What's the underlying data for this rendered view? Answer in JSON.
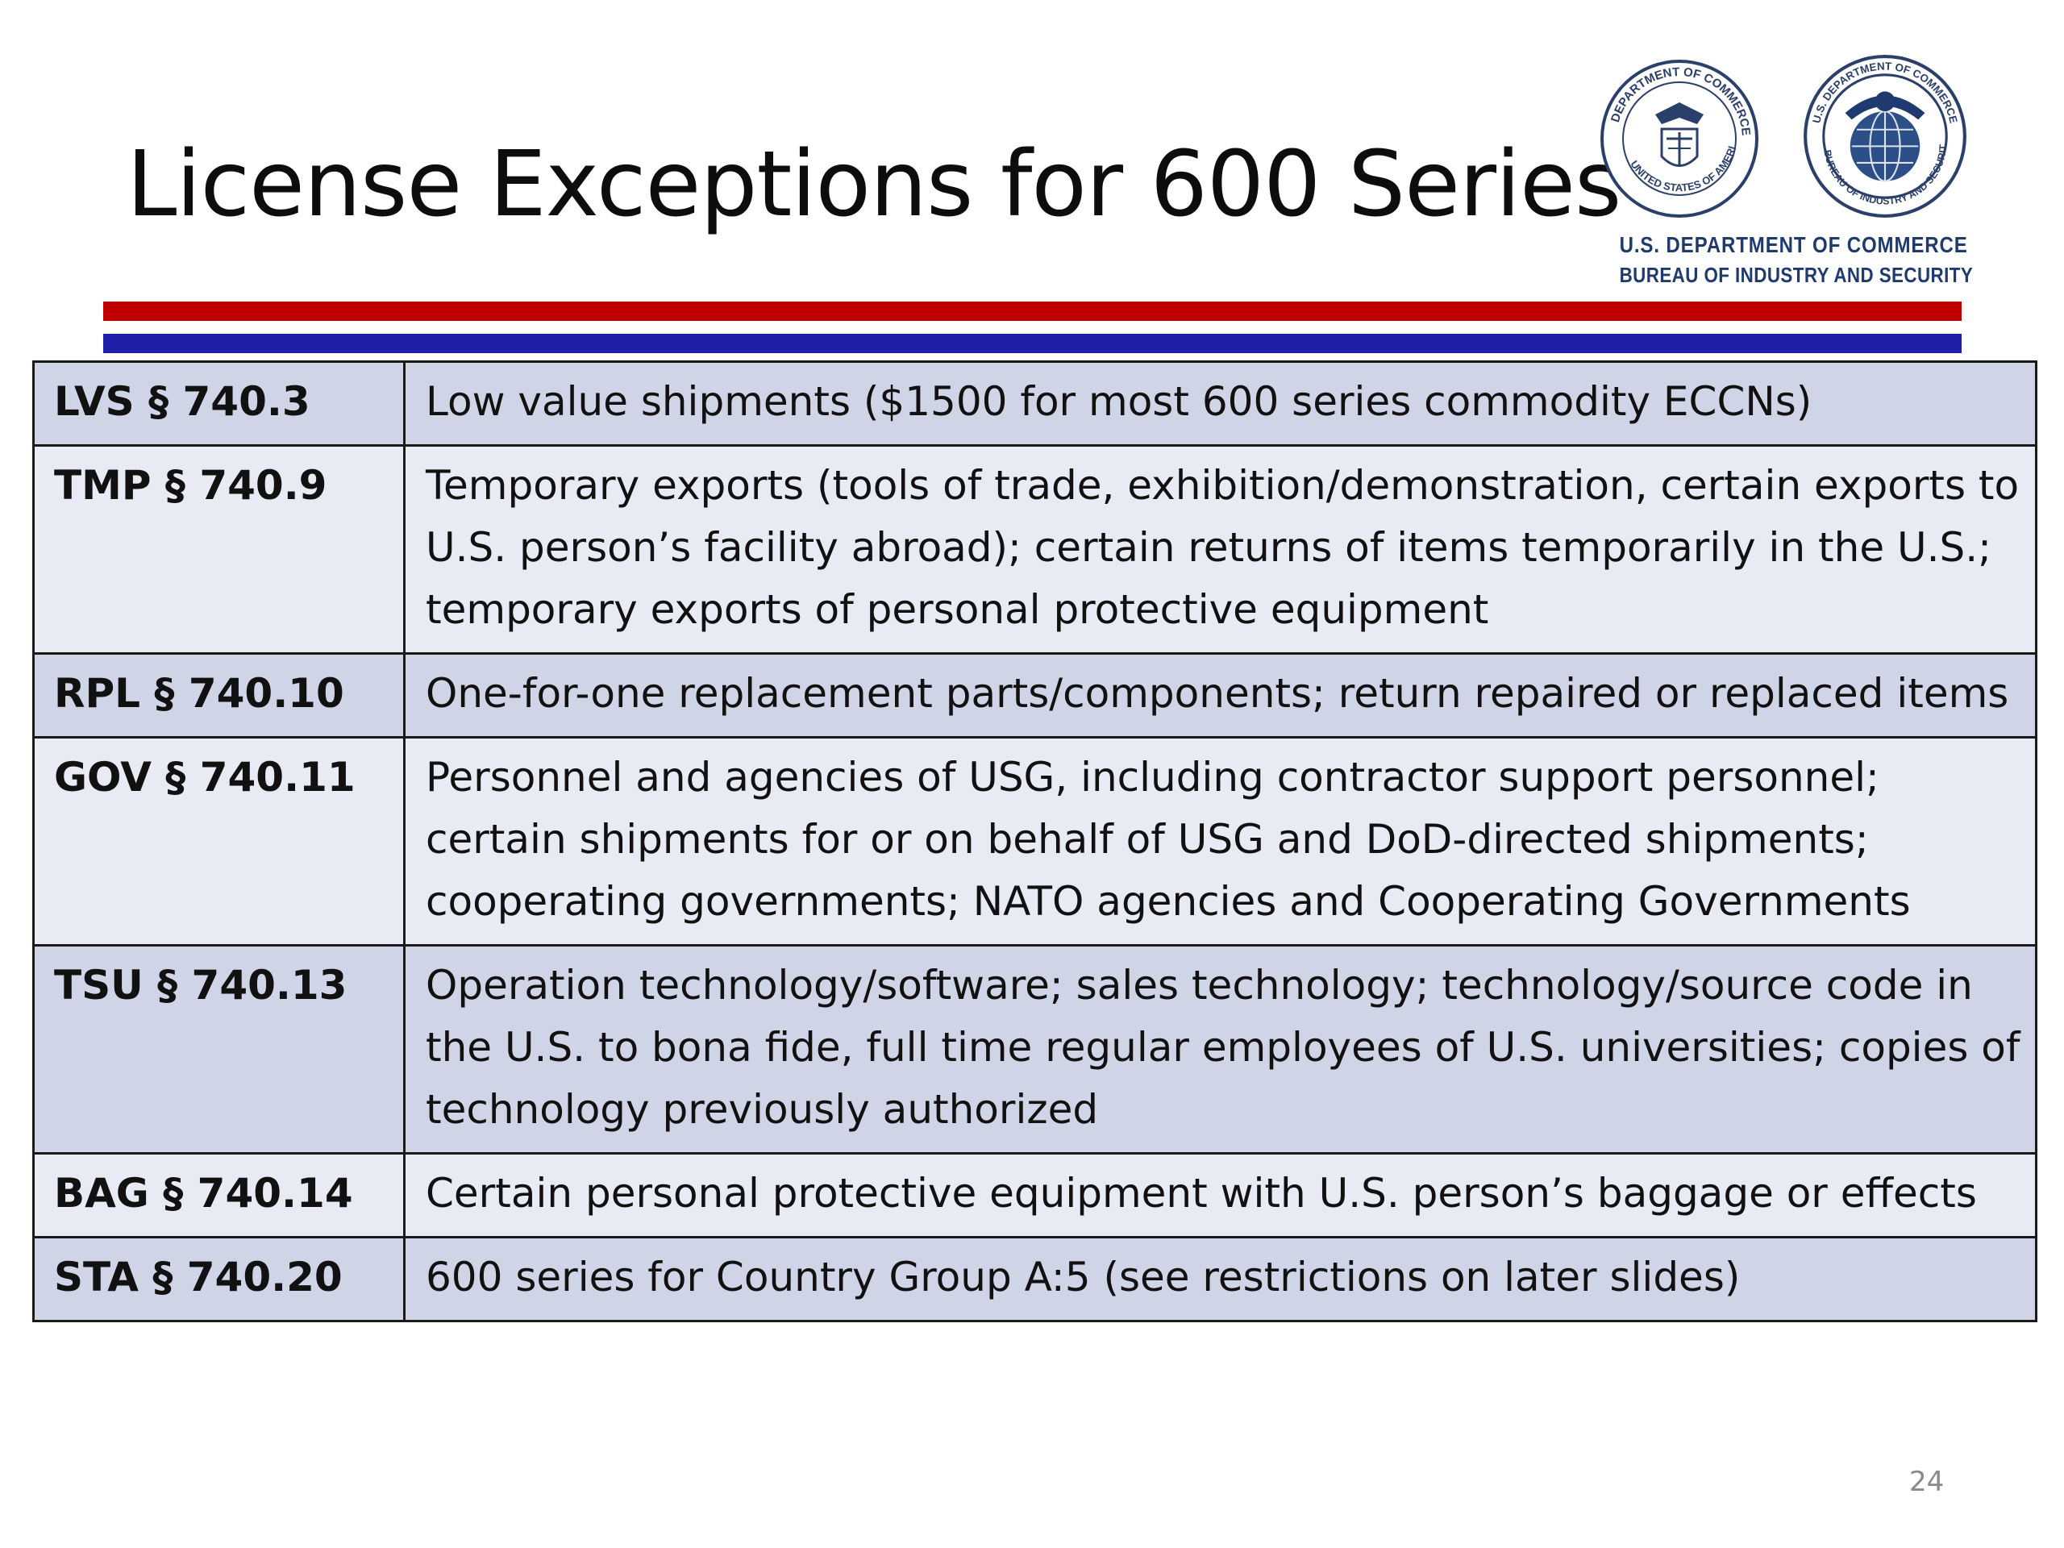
{
  "slide": {
    "title": "License Exceptions for 600 Series",
    "page_number": "24"
  },
  "logo": {
    "seal_1": "department-of-commerce-seal",
    "seal_2": "bureau-of-industry-and-security-seal",
    "line_1": "U.S. DEPARTMENT OF COMMERCE",
    "line_2": "BUREAU OF INDUSTRY AND SECURITY"
  },
  "colors": {
    "stripe_red": "#c00000",
    "stripe_blue": "#1f1fa8",
    "row_dark": "#cfd5e7",
    "row_light": "#e8ebf4"
  },
  "rows": [
    {
      "code": "LVS § 740.3",
      "description": "Low value shipments ($1500 for most 600 series commodity ECCNs)"
    },
    {
      "code": "TMP § 740.9",
      "description": "Temporary exports (tools of trade, exhibition/demonstration, certain exports to U.S. person’s facility abroad); certain returns of items temporarily in the U.S.; temporary exports of personal protective equipment"
    },
    {
      "code": "RPL § 740.10",
      "description": "One-for-one replacement parts/components; return repaired or replaced items"
    },
    {
      "code": "GOV § 740.11",
      "description": "Personnel and agencies of USG, including contractor support personnel; certain shipments for or on behalf of USG and DoD-directed shipments; cooperating governments; NATO agencies and Cooperating Governments"
    },
    {
      "code": "TSU § 740.13",
      "description": "Operation technology/software; sales technology; technology/source code in the U.S. to bona fide, full time regular employees of U.S. universities; copies of technology previously authorized"
    },
    {
      "code": "BAG § 740.14",
      "description": "Certain personal protective equipment with U.S. person’s baggage or effects"
    },
    {
      "code": "STA § 740.20",
      "description": "600 series for Country Group A:5 (see restrictions on later slides)"
    }
  ]
}
